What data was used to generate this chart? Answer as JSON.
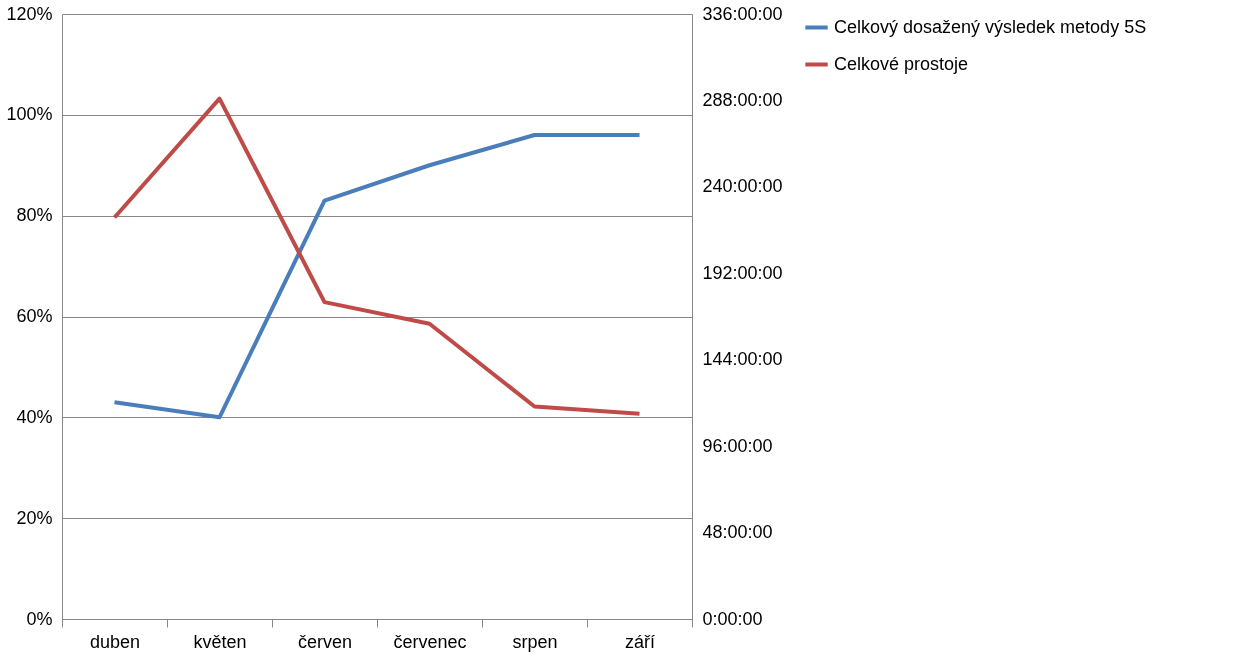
{
  "chart_data": {
    "type": "line",
    "categories": [
      "duben",
      "květen",
      "červen",
      "červenec",
      "srpen",
      "září"
    ],
    "series": [
      {
        "name": "Celkový dosažený výsledek metody 5S",
        "color": "#4a7ebb",
        "values": [
          43,
          40,
          83,
          90,
          96,
          96
        ]
      },
      {
        "name": "Celkové prostoje",
        "color": "#be4b48",
        "axis": "y2",
        "values": [
          223,
          289,
          176,
          164,
          118,
          114
        ]
      }
    ],
    "ylim": [
      0,
      120
    ],
    "yticks": [
      {
        "value": 0,
        "label": "0%"
      },
      {
        "value": 20,
        "label": "20%"
      },
      {
        "value": 40,
        "label": "40%"
      },
      {
        "value": 60,
        "label": "60%"
      },
      {
        "value": 80,
        "label": "80%"
      },
      {
        "value": 100,
        "label": "100%"
      },
      {
        "value": 120,
        "label": "120%"
      }
    ],
    "y2lim": [
      0,
      336
    ],
    "y2ticks": [
      {
        "value": 0,
        "label": "0:00:00"
      },
      {
        "value": 48,
        "label": "48:00:00"
      },
      {
        "value": 96,
        "label": "96:00:00"
      },
      {
        "value": 144,
        "label": "144:00:00"
      },
      {
        "value": 192,
        "label": "192:00:00"
      },
      {
        "value": 240,
        "label": "240:00:00"
      },
      {
        "value": 288,
        "label": "288:00:00"
      },
      {
        "value": 336,
        "label": "336:00:00"
      }
    ],
    "grid": "y",
    "legend": "right",
    "marker": "none",
    "line_style": "solid"
  }
}
